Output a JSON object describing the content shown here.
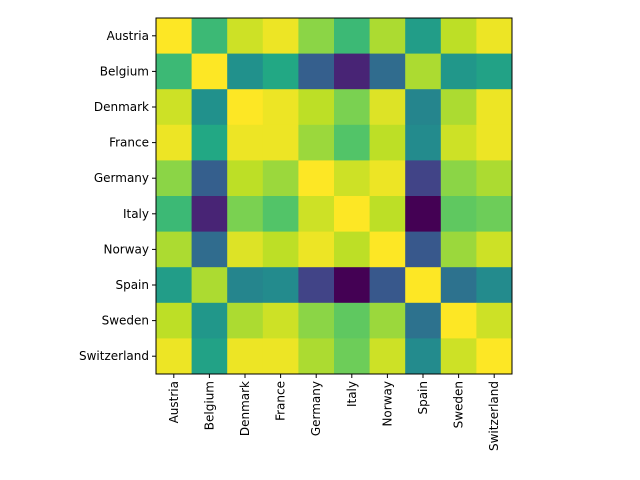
{
  "chart_data": {
    "type": "heatmap",
    "title": "",
    "xlabel": "",
    "ylabel": "",
    "colormap": "viridis",
    "value_range": [
      0.6,
      1.0
    ],
    "grid": false,
    "legend": "none",
    "rows": [
      "Austria",
      "Belgium",
      "Denmark",
      "France",
      "Germany",
      "Italy",
      "Norway",
      "Spain",
      "Sweden",
      "Switzerland"
    ],
    "columns": [
      "Austria",
      "Belgium",
      "Denmark",
      "France",
      "Germany",
      "Italy",
      "Norway",
      "Spain",
      "Sweden",
      "Switzerland"
    ],
    "values": [
      [
        1.0,
        0.87,
        0.97,
        0.99,
        0.93,
        0.87,
        0.95,
        0.82,
        0.96,
        0.99
      ],
      [
        0.87,
        1.0,
        0.8,
        0.84,
        0.72,
        0.64,
        0.74,
        0.95,
        0.81,
        0.83
      ],
      [
        0.97,
        0.8,
        1.0,
        0.99,
        0.96,
        0.92,
        0.98,
        0.78,
        0.95,
        0.99
      ],
      [
        0.99,
        0.84,
        0.99,
        0.99,
        0.94,
        0.89,
        0.96,
        0.79,
        0.97,
        0.99
      ],
      [
        0.93,
        0.72,
        0.96,
        0.94,
        1.0,
        0.97,
        0.99,
        0.68,
        0.93,
        0.95
      ],
      [
        0.87,
        0.64,
        0.92,
        0.89,
        0.97,
        1.0,
        0.96,
        0.6,
        0.9,
        0.91
      ],
      [
        0.95,
        0.74,
        0.98,
        0.96,
        0.99,
        0.96,
        1.0,
        0.71,
        0.94,
        0.97
      ],
      [
        0.82,
        0.95,
        0.78,
        0.79,
        0.68,
        0.6,
        0.71,
        1.0,
        0.75,
        0.79
      ],
      [
        0.96,
        0.81,
        0.95,
        0.97,
        0.93,
        0.9,
        0.94,
        0.75,
        1.0,
        0.97
      ],
      [
        0.99,
        0.83,
        0.99,
        0.99,
        0.95,
        0.91,
        0.97,
        0.79,
        0.97,
        1.0
      ]
    ]
  }
}
